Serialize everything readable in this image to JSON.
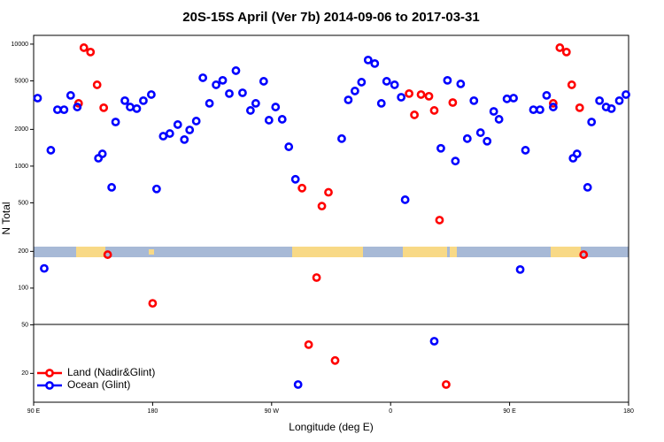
{
  "chart_data": {
    "type": "scatter",
    "title": "20S-15S April (Ver 7b)   2014-09-06 to 2017-03-31",
    "xlabel": "Longitude (deg E)",
    "ylabel": "N Total",
    "xlim": [
      90,
      540
    ],
    "xticks": [
      {
        "value": 90,
        "label": "90 E"
      },
      180,
      {
        "value": 270,
        "label": "90 W"
      },
      {
        "value": 360,
        "label": "0"
      },
      {
        "value": 450,
        "label": "90 E"
      },
      {
        "value": 540,
        "label": "180"
      }
    ],
    "ylim": [
      11.6,
      11800
    ],
    "yscale": "log",
    "yticks": [
      20,
      50,
      100,
      200,
      500,
      1000,
      2000,
      5000,
      10000
    ],
    "legend": "bottom-left",
    "series": [
      {
        "name": "Land (Nadir&Glint)",
        "color": "#ff0000",
        "x": [
          124,
          128,
          133,
          138,
          143,
          146,
          180,
          293,
          298,
          304,
          308,
          313,
          318,
          374,
          378,
          383,
          389,
          393,
          397,
          402,
          407,
          483,
          488,
          493,
          497,
          503,
          506
        ],
        "values": [
          3270,
          9350,
          8610,
          4640,
          3010,
          188,
          75,
          660,
          34.4,
          122,
          470,
          610,
          25.5,
          3930,
          2630,
          3860,
          3740,
          2860,
          361,
          16.2,
          3320,
          3270,
          9350,
          8610,
          4640,
          3010,
          188
        ]
      },
      {
        "name": "Ocean (Glint)",
        "color": "#0000ff",
        "x": [
          93,
          98,
          103,
          108,
          113,
          118,
          123,
          139,
          142,
          149,
          152,
          159,
          163,
          168,
          173,
          179,
          183,
          188,
          193,
          199,
          204,
          208,
          213,
          218,
          223,
          228,
          233,
          238,
          243,
          248,
          254,
          258,
          264,
          268,
          273,
          278,
          283,
          288,
          290,
          323,
          328,
          333,
          338,
          343,
          348,
          353,
          357,
          363,
          368,
          371,
          393,
          398,
          403,
          409,
          413,
          418,
          423,
          428,
          433,
          438,
          442,
          448,
          453,
          458,
          462,
          468,
          473,
          478,
          483,
          498,
          501,
          509,
          512,
          518,
          523,
          527,
          533,
          538
        ],
        "values": [
          3610,
          145,
          1350,
          2900,
          2900,
          3800,
          3050,
          1160,
          1260,
          670,
          2300,
          3440,
          3050,
          2960,
          3440,
          3860,
          650,
          1760,
          1850,
          2190,
          1650,
          1980,
          2340,
          5300,
          3270,
          4640,
          5050,
          3930,
          6060,
          3990,
          2860,
          3270,
          4960,
          2380,
          3050,
          2420,
          1440,
          780,
          16.2,
          1680,
          3490,
          4130,
          4880,
          7410,
          6930,
          3270,
          4960,
          4640,
          3670,
          530,
          36.7,
          1400,
          5050,
          1100,
          4720,
          1680,
          3440,
          1880,
          1600,
          2810,
          2420,
          3560,
          3610,
          142,
          1350,
          2900,
          2900,
          3800,
          3050,
          1160,
          1260,
          670,
          2300,
          3440,
          3050,
          2960,
          3440,
          3860
        ]
      }
    ]
  }
}
